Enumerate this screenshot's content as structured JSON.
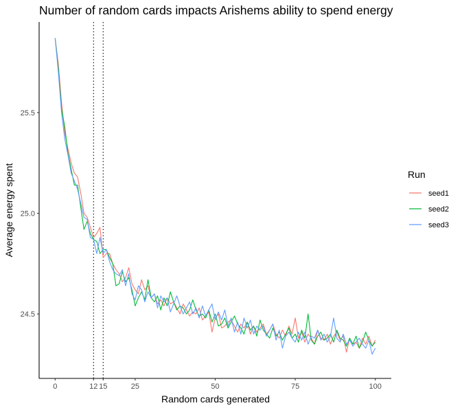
{
  "chart_data": {
    "type": "line",
    "title": "Number of random cards impacts Arishems ability to spend energy",
    "xlabel": "Random cards generated",
    "ylabel": "Average energy spent",
    "xlim": [
      -5,
      105
    ],
    "ylim": [
      24.18,
      25.95
    ],
    "x_ticks": [
      0,
      12,
      15,
      25,
      50,
      75,
      100
    ],
    "x_tick_labels": [
      "0",
      "12",
      "15",
      "25",
      "50",
      "75",
      "100"
    ],
    "y_ticks": [
      24.5,
      25.0,
      25.5
    ],
    "y_tick_labels": [
      "24.5",
      "25.0",
      "25.5"
    ],
    "vlines": [
      12,
      15
    ],
    "legend": {
      "title": "Run",
      "position": "right"
    },
    "series": [
      {
        "name": "seed1",
        "label": "seed1",
        "color": "#F8766D",
        "values": [
          25.87,
          25.74,
          25.55,
          25.4,
          25.32,
          25.25,
          25.2,
          25.18,
          25.1,
          25.0,
          24.98,
          24.93,
          24.88,
          24.9,
          24.93,
          24.78,
          24.8,
          24.8,
          24.75,
          24.72,
          24.7,
          24.66,
          24.68,
          24.73,
          24.65,
          24.62,
          24.6,
          24.67,
          24.62,
          24.64,
          24.58,
          24.6,
          24.55,
          24.57,
          24.54,
          24.58,
          24.55,
          24.56,
          24.53,
          24.5,
          24.55,
          24.52,
          24.49,
          24.51,
          24.5,
          24.53,
          24.47,
          24.49,
          24.51,
          24.41,
          24.48,
          24.5,
          24.43,
          24.44,
          24.46,
          24.47,
          24.44,
          24.41,
          24.45,
          24.43,
          24.46,
          24.4,
          24.44,
          24.41,
          24.43,
          24.45,
          24.4,
          24.42,
          24.45,
          24.4,
          24.38,
          24.42,
          24.39,
          24.44,
          24.4,
          24.48,
          24.38,
          24.41,
          24.36,
          24.4,
          24.38,
          24.35,
          24.42,
          24.38,
          24.37,
          24.4,
          24.35,
          24.39,
          24.41,
          24.37,
          24.39,
          24.31,
          24.38,
          24.35,
          24.36,
          24.33,
          24.38,
          24.35,
          24.39,
          24.34,
          24.37
        ]
      },
      {
        "name": "seed2",
        "label": "seed2",
        "color": "#00BA38",
        "values": [
          25.87,
          25.72,
          25.52,
          25.43,
          25.3,
          25.22,
          25.14,
          25.14,
          25.03,
          24.92,
          24.96,
          24.9,
          24.87,
          24.86,
          24.8,
          24.82,
          24.82,
          24.78,
          24.75,
          24.64,
          24.65,
          24.71,
          24.66,
          24.68,
          24.62,
          24.54,
          24.58,
          24.61,
          24.57,
          24.67,
          24.58,
          24.56,
          24.59,
          24.52,
          24.58,
          24.54,
          24.61,
          24.56,
          24.52,
          24.54,
          24.53,
          24.5,
          24.52,
          24.57,
          24.52,
          24.49,
          24.5,
          24.48,
          24.52,
          24.46,
          24.5,
          24.44,
          24.45,
          24.48,
          24.43,
          24.46,
          24.49,
          24.45,
          24.43,
          24.4,
          24.46,
          24.42,
          24.44,
          24.39,
          24.47,
          24.42,
          24.4,
          24.38,
          24.43,
          24.39,
          24.41,
          24.37,
          24.4,
          24.43,
          24.38,
          24.4,
          24.36,
          24.42,
          24.38,
          24.5,
          24.37,
          24.35,
          24.39,
          24.41,
          24.37,
          24.38,
          24.4,
          24.36,
          24.42,
          24.38,
          24.37,
          24.34,
          24.38,
          24.35,
          24.39,
          24.33,
          24.36,
          24.41,
          24.37,
          24.34,
          24.36
        ]
      },
      {
        "name": "seed3",
        "label": "seed3",
        "color": "#619CFF",
        "values": [
          25.87,
          25.7,
          25.5,
          25.37,
          25.29,
          25.2,
          25.16,
          25.12,
          25.05,
          24.98,
          24.97,
          24.88,
          24.87,
          24.8,
          24.88,
          24.8,
          24.82,
          24.76,
          24.72,
          24.7,
          24.69,
          24.72,
          24.64,
          24.7,
          24.6,
          24.57,
          24.64,
          24.62,
          24.56,
          24.61,
          24.58,
          24.6,
          24.53,
          24.59,
          24.56,
          24.58,
          24.51,
          24.55,
          24.59,
          24.54,
          24.5,
          24.53,
          24.56,
          24.5,
          24.53,
          24.48,
          24.54,
          24.49,
          24.52,
          24.55,
          24.47,
          24.51,
          24.47,
          24.52,
          24.44,
          24.48,
          24.41,
          24.46,
          24.4,
          24.48,
          24.43,
          24.47,
          24.4,
          24.44,
          24.42,
          24.44,
          24.39,
          24.42,
          24.45,
          24.37,
          24.42,
          24.33,
          24.39,
          24.41,
          24.38,
          24.36,
          24.41,
          24.37,
          24.41,
          24.35,
          24.39,
          24.38,
          24.42,
          24.37,
          24.4,
          24.36,
          24.39,
          24.48,
          24.38,
          24.36,
          24.4,
          24.35,
          24.37,
          24.34,
          24.36,
          24.38,
          24.35,
          24.33,
          24.37,
          24.3,
          24.33
        ]
      }
    ]
  }
}
